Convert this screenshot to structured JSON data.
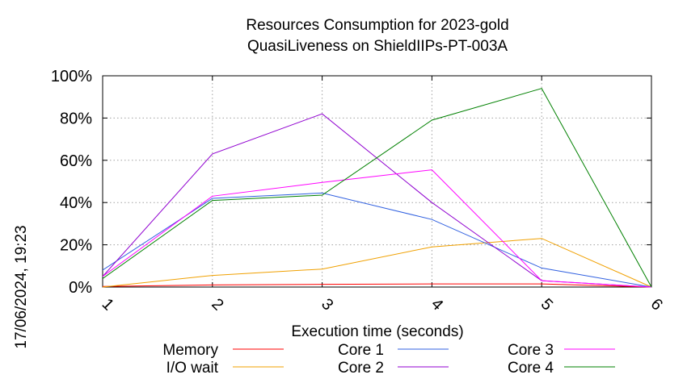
{
  "chart_data": {
    "type": "line",
    "title_line1": "Resources Consumption for 2023-gold",
    "title_line2": "QuasiLiveness on ShieldIIPs-PT-003A",
    "xlabel": "Execution time (seconds)",
    "ylabel": "",
    "side_label": "17/06/2024, 19:23",
    "x": [
      1,
      2,
      3,
      4,
      5,
      6
    ],
    "xlim": [
      1,
      6
    ],
    "ylim": [
      0,
      100
    ],
    "x_ticks": [
      "1",
      "2",
      "3",
      "4",
      "5",
      "6"
    ],
    "y_ticks": [
      {
        "value": 0,
        "label": "0%"
      },
      {
        "value": 20,
        "label": "20%"
      },
      {
        "value": 40,
        "label": "40%"
      },
      {
        "value": 60,
        "label": "60%"
      },
      {
        "value": 80,
        "label": "80%"
      },
      {
        "value": 100,
        "label": "100%"
      }
    ],
    "grid": true,
    "legend_position": "bottom",
    "series": [
      {
        "name": "Memory",
        "color": "#ff0000",
        "values": [
          0.3,
          1.0,
          1.3,
          1.5,
          1.5,
          0
        ]
      },
      {
        "name": "I/O wait",
        "color": "#f0a000",
        "values": [
          0,
          5.5,
          8.5,
          19,
          23,
          0
        ]
      },
      {
        "name": "Core 1",
        "color": "#3060e0",
        "values": [
          8,
          42,
          44.5,
          32,
          9,
          0
        ]
      },
      {
        "name": "Core 2",
        "color": "#9000d0",
        "values": [
          5,
          63,
          82,
          40,
          3,
          0
        ]
      },
      {
        "name": "Core 3",
        "color": "#ff00ff",
        "values": [
          5,
          43,
          49.5,
          55.5,
          3,
          0
        ]
      },
      {
        "name": "Core 4",
        "color": "#008000",
        "values": [
          4,
          41,
          43.5,
          79,
          94,
          0
        ]
      }
    ]
  }
}
